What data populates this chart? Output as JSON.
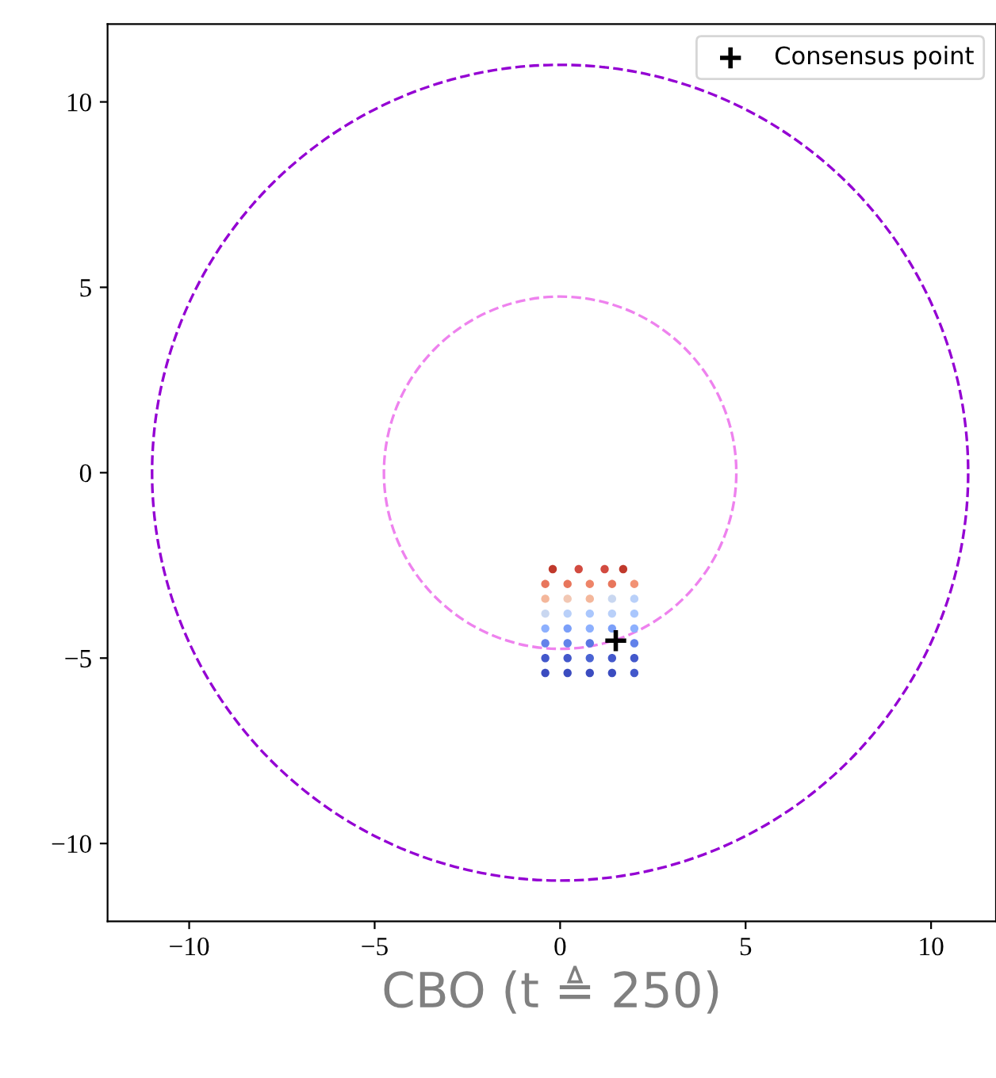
{
  "chart_data": {
    "type": "scatter",
    "xlabel": "CBO (t ≜ 250)",
    "xlim": [
      -12.2,
      11.75
    ],
    "ylim": [
      -12.1,
      12.1
    ],
    "xticks": [
      {
        "value": -10,
        "label": "−10"
      },
      {
        "value": -5,
        "label": "−5"
      },
      0,
      5,
      10
    ],
    "yticks": [
      {
        "value": -10,
        "label": "−10"
      },
      {
        "value": -5,
        "label": "−5"
      },
      0,
      5,
      10
    ],
    "grid": false,
    "legend": "top right",
    "series": [
      {
        "marker": "circle",
        "x": [
          -0.2,
          0.5,
          1.2,
          1.7,
          -0.4,
          0.2,
          0.8,
          1.4,
          2.0,
          -0.4,
          0.2,
          0.8,
          1.4,
          2.0,
          -0.4,
          0.2,
          0.8,
          1.4,
          2.0,
          -0.4,
          0.2,
          0.8,
          1.4,
          2.0,
          -0.4,
          0.2,
          0.8,
          1.4,
          2.0,
          -0.4,
          0.2,
          0.8,
          1.4,
          2.0,
          -0.4,
          0.2,
          0.8,
          1.4,
          2.0
        ],
        "values": [
          -2.6,
          -2.6,
          -2.6,
          -2.6,
          -3.0,
          -3.0,
          -3.0,
          -3.0,
          -3.0,
          -3.4,
          -3.4,
          -3.4,
          -3.4,
          -3.4,
          -3.8,
          -3.8,
          -3.8,
          -3.8,
          -3.8,
          -4.2,
          -4.2,
          -4.2,
          -4.2,
          -4.2,
          -4.6,
          -4.6,
          -4.6,
          null,
          -4.6,
          -5.0,
          -5.0,
          -5.0,
          -5.0,
          -5.0,
          -5.4,
          -5.4,
          -5.4,
          -5.4,
          -5.4
        ],
        "colors": [
          "#c0392b",
          "#d24b40",
          "#d24b40",
          "#c0392b",
          "#e8765c",
          "#e8765c",
          "#ee8468",
          "#e8765c",
          "#f29274",
          "#f4b79b",
          "#f2c8b4",
          "#f4b79b",
          "#c9d7f0",
          "#b9d0f9",
          "#c9d7f0",
          "#b9d0f9",
          "#aac7fd",
          "#b9d0f9",
          "#aac7fd",
          "#8db0fe",
          "#7b9ff9",
          "#8db0fe",
          "#7b9ff9",
          "#8db0fe",
          "#6282ea",
          "#6282ea",
          "#5977e3",
          "#6282ea",
          "#6282ea",
          "#4358cb",
          "#4358cb",
          "#4a63d3",
          "#4358cb",
          "#4358cb",
          "#3b4cc0",
          "#3b4cc0",
          "#3b4cc0",
          "#3b4cc0",
          "#4358cb"
        ]
      },
      {
        "name": "Consensus point",
        "color": "#000000",
        "marker": "cross",
        "x": [
          1.5
        ],
        "values": [
          -4.53
        ]
      }
    ]
  }
}
